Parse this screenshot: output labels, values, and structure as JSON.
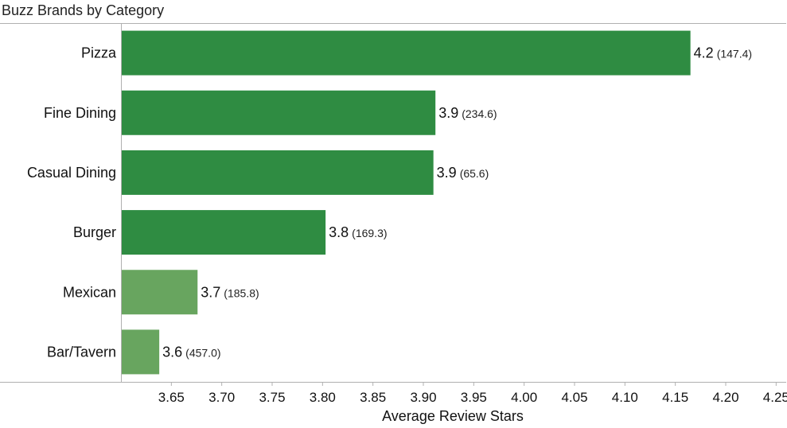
{
  "chart_data": {
    "type": "bar",
    "orientation": "horizontal",
    "title": "Buzz Brands by Category",
    "xlabel": "Average Review Stars",
    "ylabel": "",
    "xlim": [
      3.6,
      4.26
    ],
    "xticks": [
      "3.65",
      "3.70",
      "3.75",
      "3.80",
      "3.85",
      "3.90",
      "3.95",
      "4.00",
      "4.05",
      "4.10",
      "4.15",
      "4.20",
      "4.25"
    ],
    "categories": [
      "Pizza",
      "Fine Dining",
      "Casual Dining",
      "Burger",
      "Mexican",
      "Bar/Tavern"
    ],
    "values": [
      4.165,
      3.912,
      3.91,
      3.803,
      3.676,
      3.638
    ],
    "value_labels": [
      "4.2",
      "3.9",
      "3.9",
      "3.8",
      "3.7",
      "3.6"
    ],
    "secondary_labels": [
      "(147.4)",
      "(234.6)",
      "(65.6)",
      "(169.3)",
      "(185.8)",
      "(457.0)"
    ],
    "bar_colors": [
      "#2f8c42",
      "#2f8c42",
      "#2f8c42",
      "#2f8c42",
      "#68a55f",
      "#68a55f"
    ],
    "grid": false,
    "legend": "none"
  },
  "colors": {
    "bar_dark": "#2f8c42",
    "bar_light": "#68a55f",
    "axis": "#b0b0b0"
  }
}
